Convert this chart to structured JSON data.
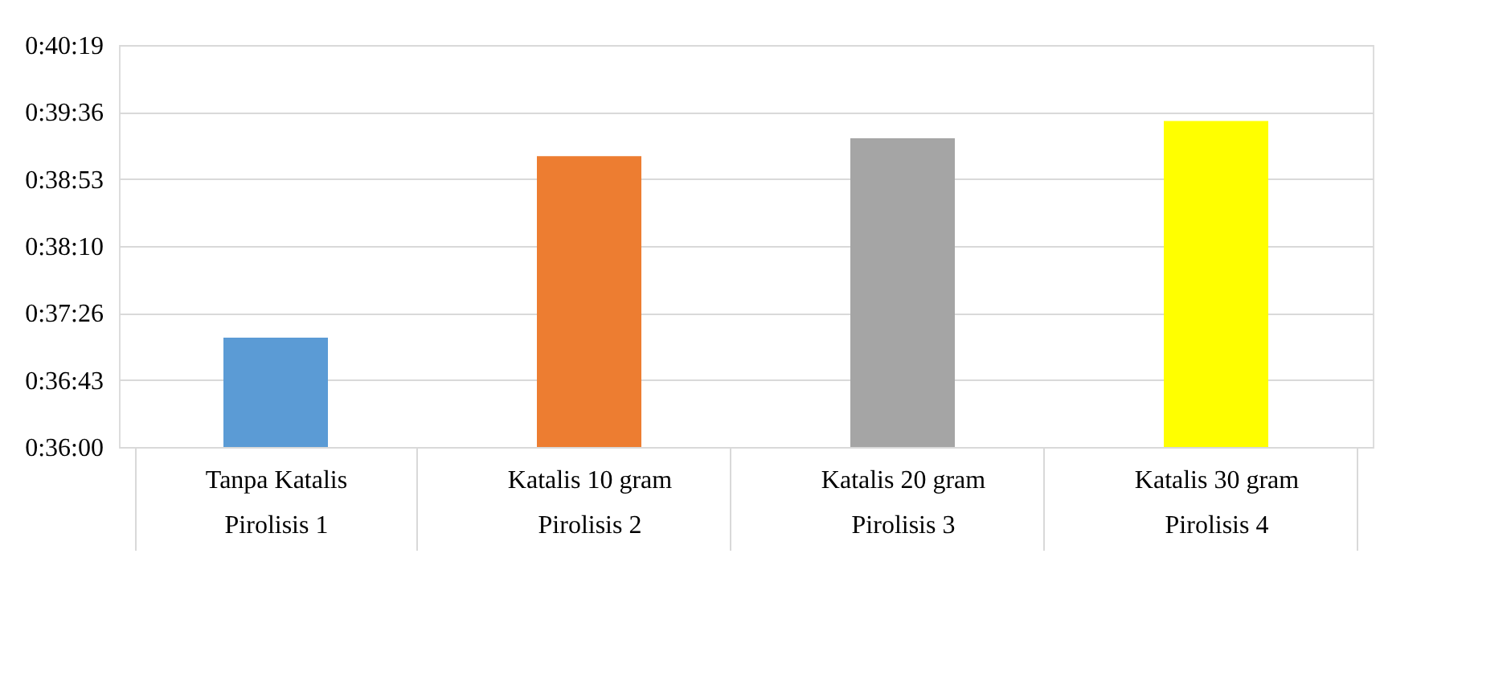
{
  "chart_data": {
    "type": "bar",
    "categories": [
      "Tanpa Katalis\nPirolisis 1",
      "Katalis 10 gram\nPirolisis 2",
      "Katalis 20 gram\nPirolisis 3",
      "Katalis 30 gram\nPirolisis 4"
    ],
    "values": [
      0.6196,
      0.6521,
      0.6553,
      0.6584
    ],
    "colors": [
      "#5b9bd5",
      "#ed7d31",
      "#a5a5a5",
      "#ffff00"
    ],
    "ylim": [
      0.6,
      0.672
    ],
    "yticks": [
      {
        "value": 0.6,
        "label": "0:36:00"
      },
      {
        "value": 0.612,
        "label": "0:36:43"
      },
      {
        "value": 0.624,
        "label": "0:37:26"
      },
      {
        "value": 0.636,
        "label": "0:38:10"
      },
      {
        "value": 0.648,
        "label": "0:38:53"
      },
      {
        "value": 0.66,
        "label": "0:39:36"
      },
      {
        "value": 0.672,
        "label": "0:40:19"
      }
    ],
    "grid": "y"
  }
}
